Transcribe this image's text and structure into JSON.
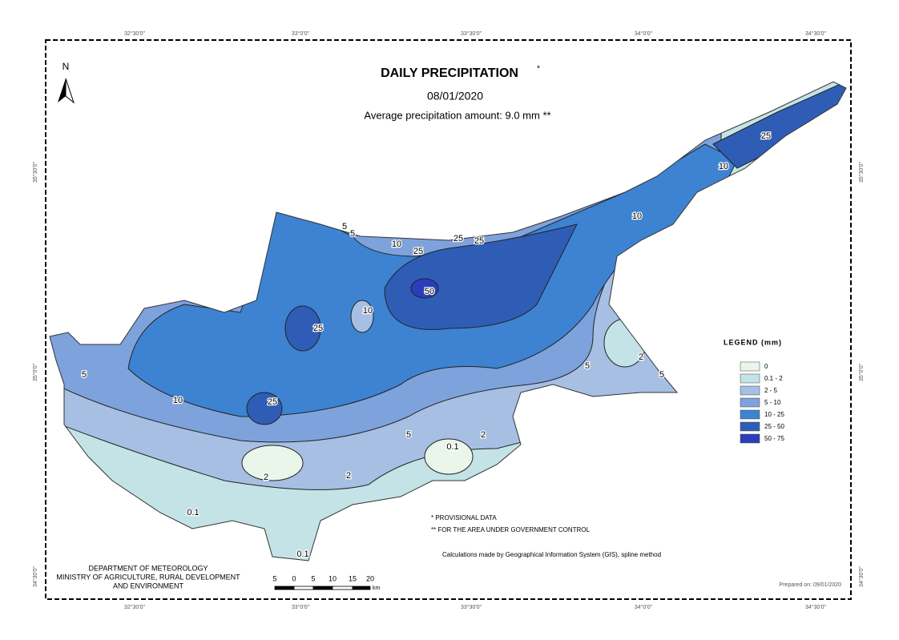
{
  "title": "DAILY PRECIPITATION",
  "title_mark": "*",
  "date": "08/01/2020",
  "subtitle": "Average precipitation amount: 9.0 mm **",
  "north": "N",
  "graticule": {
    "top": [
      "32°30'0\"",
      "33°0'0\"",
      "33°30'0\"",
      "34°0'0\"",
      "34°30'0\""
    ],
    "bottom": [
      "32°30'0\"",
      "33°0'0\"",
      "33°30'0\"",
      "34°0'0\"",
      "34°30'0\""
    ],
    "left": [
      "35°30'0\"",
      "35°0'0\"",
      "34°30'0\""
    ],
    "right": [
      "35°30'0\"",
      "35°0'0\"",
      "34°30'0\""
    ]
  },
  "legend": {
    "title": "LEGEND (mm)",
    "items": [
      {
        "label": "0",
        "color": "#e9f6e9"
      },
      {
        "label": "0.1 - 2",
        "color": "#c4e3e6"
      },
      {
        "label": "2 - 5",
        "color": "#a6bfe3"
      },
      {
        "label": "5 - 10",
        "color": "#7ea2dc"
      },
      {
        "label": "10 - 25",
        "color": "#3d83d2"
      },
      {
        "label": "25 - 50",
        "color": "#2f5db5"
      },
      {
        "label": "50 - 75",
        "color": "#2a3ebd"
      }
    ]
  },
  "contour_labels": [
    "5",
    "5",
    "10",
    "25",
    "25",
    "25",
    "50",
    "10",
    "25",
    "25",
    "10",
    "10",
    "5",
    "2",
    "5",
    "5",
    "10",
    "25",
    "5",
    "2",
    "0.1",
    "2",
    "2",
    "0.1",
    "0.1"
  ],
  "notes": [
    "* PROVISIONAL DATA",
    "** FOR THE AREA UNDER GOVERNMENT CONTROL"
  ],
  "method": "Calculations made by Geographical Information System (GIS), spline method",
  "department": [
    "DEPARTMENT OF METEOROLOGY",
    "MINISTRY OF AGRICULTURE, RURAL DEVELOPMENT",
    "AND ENVIRONMENT"
  ],
  "scale": {
    "labels": [
      "5",
      "0",
      "5",
      "10",
      "15",
      "20"
    ],
    "unit": "km"
  },
  "prepared": "Prepared on: 09/01/2020"
}
